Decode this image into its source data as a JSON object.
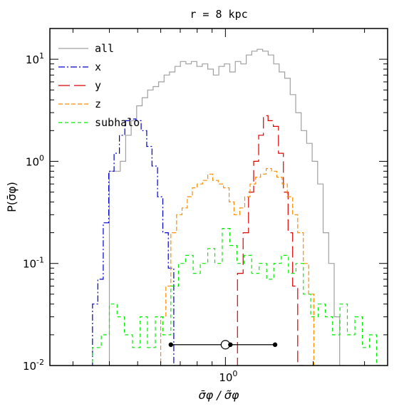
{
  "chart_data": {
    "type": "line",
    "step": true,
    "title": "r = 8 kpc",
    "xlabel": "σ̄φ / σ̃φ",
    "ylabel": "P(σ̄φ)",
    "x_scale": "log",
    "y_scale": "log",
    "xlim": [
      0.25,
      3.6
    ],
    "ylim": [
      0.01,
      20
    ],
    "x_tick_labels": [
      {
        "value": 1,
        "base": "10",
        "exp": "0"
      }
    ],
    "y_tick_labels": [
      {
        "value": 10,
        "base": "10",
        "exp": "1"
      },
      {
        "value": 1,
        "base": "10",
        "exp": "0"
      },
      {
        "value": 0.1,
        "base": "10",
        "exp": "-1"
      },
      {
        "value": 0.01,
        "base": "10",
        "exp": "-2"
      }
    ],
    "legend_position": "top-left",
    "series": [
      {
        "name": "all",
        "color": "#a0a0a0",
        "dash": "solid",
        "x": [
          0.4,
          0.418,
          0.436,
          0.455,
          0.475,
          0.496,
          0.518,
          0.541,
          0.565,
          0.59,
          0.616,
          0.643,
          0.671,
          0.701,
          0.732,
          0.764,
          0.798,
          0.833,
          0.87,
          0.909,
          0.949,
          0.991,
          1.035,
          1.081,
          1.129,
          1.179,
          1.231,
          1.285,
          1.342,
          1.402,
          1.464,
          1.529,
          1.597,
          1.668,
          1.742,
          1.819,
          1.9,
          1.984,
          2.072,
          2.164,
          2.26,
          2.36,
          2.465
        ],
        "y": [
          0.8,
          0.8,
          1.0,
          1.8,
          2.5,
          3.5,
          4.2,
          5.0,
          5.4,
          6.0,
          7.0,
          7.5,
          8.5,
          9.5,
          9.0,
          9.5,
          8.5,
          9.0,
          8.0,
          7.0,
          8.5,
          9.0,
          7.5,
          9.5,
          9.0,
          11.0,
          12.0,
          12.5,
          12.0,
          11.0,
          9.0,
          7.5,
          6.5,
          4.5,
          3.0,
          2.0,
          1.5,
          1.0,
          0.6,
          0.2,
          0.1,
          0.03,
          0.01
        ]
      },
      {
        "name": "x",
        "color": "#0000cc",
        "dash": "dashdot",
        "x": [
          0.35,
          0.365,
          0.381,
          0.398,
          0.415,
          0.433,
          0.452,
          0.472,
          0.493,
          0.514,
          0.537,
          0.56,
          0.585,
          0.61,
          0.637,
          0.665
        ],
        "y": [
          0.04,
          0.07,
          0.25,
          0.8,
          1.2,
          1.8,
          2.5,
          2.6,
          2.5,
          2.0,
          1.4,
          0.9,
          0.45,
          0.2,
          0.09,
          0.01
        ]
      },
      {
        "name": "y",
        "color": "#dd0000",
        "dash": "longdash",
        "x": [
          1.1,
          1.15,
          1.2,
          1.25,
          1.3,
          1.35,
          1.4,
          1.46,
          1.52,
          1.58,
          1.64,
          1.7,
          1.77
        ],
        "y": [
          0.08,
          0.2,
          0.5,
          1.0,
          1.8,
          2.8,
          2.5,
          2.2,
          1.2,
          0.5,
          0.2,
          0.06,
          0.01
        ]
      },
      {
        "name": "z",
        "color": "#ff8c00",
        "dash": "dash",
        "x": [
          0.6,
          0.625,
          0.65,
          0.68,
          0.71,
          0.74,
          0.77,
          0.8,
          0.835,
          0.87,
          0.905,
          0.945,
          0.985,
          1.03,
          1.07,
          1.12,
          1.165,
          1.215,
          1.27,
          1.32,
          1.38,
          1.44,
          1.5,
          1.565,
          1.63,
          1.7,
          1.77,
          1.85,
          1.93,
          2.01
        ],
        "y": [
          0.03,
          0.06,
          0.2,
          0.3,
          0.35,
          0.45,
          0.55,
          0.6,
          0.65,
          0.75,
          0.65,
          0.6,
          0.55,
          0.4,
          0.3,
          0.35,
          0.45,
          0.6,
          0.7,
          0.75,
          0.85,
          0.8,
          0.7,
          0.6,
          0.45,
          0.3,
          0.2,
          0.1,
          0.05,
          0.01
        ]
      },
      {
        "name": "subhalo",
        "color": "#00ee00",
        "dash": "shortdash",
        "x": [
          0.35,
          0.375,
          0.4,
          0.425,
          0.45,
          0.48,
          0.51,
          0.54,
          0.575,
          0.61,
          0.65,
          0.69,
          0.73,
          0.775,
          0.82,
          0.87,
          0.92,
          0.975,
          1.035,
          1.095,
          1.16,
          1.23,
          1.305,
          1.385,
          1.465,
          1.555,
          1.645,
          1.745,
          1.85,
          1.96,
          2.08,
          2.2,
          2.33,
          2.47,
          2.62,
          2.78,
          2.95,
          3.12,
          3.3
        ],
        "y": [
          0.015,
          0.02,
          0.04,
          0.03,
          0.02,
          0.015,
          0.03,
          0.015,
          0.03,
          0.02,
          0.06,
          0.1,
          0.12,
          0.08,
          0.1,
          0.14,
          0.1,
          0.22,
          0.15,
          0.1,
          0.12,
          0.08,
          0.1,
          0.07,
          0.1,
          0.12,
          0.08,
          0.1,
          0.05,
          0.03,
          0.04,
          0.03,
          0.02,
          0.04,
          0.02,
          0.03,
          0.015,
          0.02,
          0.01
        ]
      }
    ],
    "errorbar": {
      "y": 0.016,
      "points": [
        {
          "x": 0.65,
          "marker": "filled"
        },
        {
          "x": 1.0,
          "marker": "open"
        },
        {
          "x": 1.04,
          "marker": "filled"
        },
        {
          "x": 1.48,
          "marker": "filled"
        }
      ]
    }
  }
}
